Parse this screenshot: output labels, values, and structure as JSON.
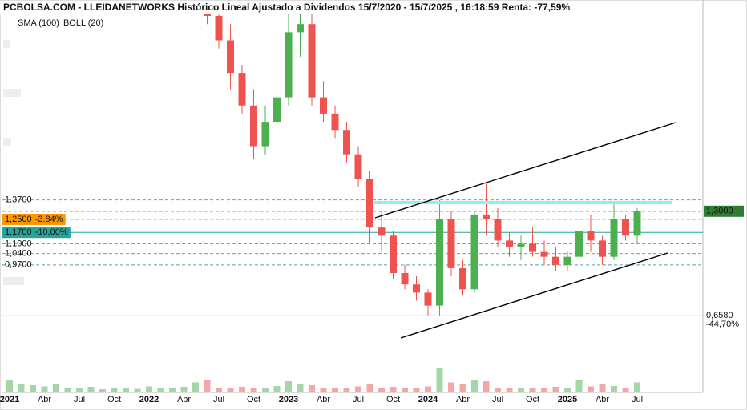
{
  "chart_data": {
    "type": "candlestick",
    "title": "PCBOLSA.COM - LLEIDANETWORKS Histórico Lineal Ajustado a Dividendos 15/7/2020 - 15/7/2025 , 16:18:59 Renta: -77,59%",
    "legend": [
      {
        "name": "SMA (100)",
        "color": "#8fd3ee"
      },
      {
        "name": "BOLL (20)",
        "color": "#c4c4c4"
      }
    ],
    "categories": [
      "2021",
      null,
      null,
      "Abr",
      null,
      null,
      "Jul",
      null,
      null,
      "Oct",
      null,
      null,
      "2022",
      null,
      null,
      "Abr",
      null,
      null,
      "Jul",
      null,
      null,
      "Oct",
      null,
      null,
      "2023",
      null,
      null,
      "Abr",
      null,
      null,
      "Jul",
      null,
      null,
      "Oct",
      null,
      null,
      "2024",
      null,
      null,
      "Abr",
      null,
      null,
      "Jul",
      null,
      null,
      "Oct",
      null,
      null,
      "2025",
      null,
      null,
      "Abr",
      null,
      null,
      "Jul"
    ],
    "open": [
      null,
      null,
      null,
      null,
      null,
      null,
      null,
      null,
      null,
      null,
      null,
      null,
      null,
      null,
      null,
      null,
      null,
      2.6,
      2.5,
      2.35,
      2.15,
      1.95,
      1.7,
      1.85,
      2.0,
      2.4,
      2.45,
      2.0,
      1.9,
      1.8,
      1.65,
      1.5,
      1.2,
      1.15,
      0.92,
      0.85,
      0.8,
      0.72,
      1.25,
      0.95,
      0.82,
      1.28,
      1.25,
      1.12,
      1.08,
      1.1,
      1.05,
      1.02,
      0.97,
      1.02,
      1.18,
      1.12,
      1.02,
      1.25,
      1.15
    ],
    "high": [
      null,
      null,
      null,
      null,
      null,
      null,
      null,
      null,
      null,
      null,
      null,
      null,
      null,
      null,
      null,
      null,
      null,
      2.7,
      2.55,
      2.45,
      2.2,
      2.05,
      1.95,
      2.05,
      2.55,
      2.55,
      2.55,
      2.1,
      1.95,
      1.85,
      1.7,
      1.55,
      1.3,
      1.18,
      0.97,
      0.9,
      0.82,
      1.37,
      1.3,
      1.0,
      1.3,
      1.47,
      1.32,
      1.17,
      1.15,
      1.2,
      1.12,
      1.08,
      1.05,
      1.37,
      1.28,
      1.15,
      1.36,
      1.28,
      1.32
    ],
    "low": [
      null,
      null,
      null,
      null,
      null,
      null,
      null,
      null,
      null,
      null,
      null,
      null,
      null,
      null,
      null,
      null,
      null,
      2.45,
      2.3,
      2.05,
      1.9,
      1.62,
      1.65,
      1.7,
      1.95,
      2.25,
      1.95,
      1.85,
      1.75,
      1.6,
      1.45,
      1.1,
      1.05,
      0.88,
      0.82,
      0.75,
      0.66,
      0.66,
      0.9,
      0.78,
      0.8,
      1.15,
      1.08,
      1.02,
      1.0,
      1.02,
      0.97,
      0.93,
      0.93,
      1.0,
      1.05,
      0.97,
      1.0,
      1.12,
      1.1
    ],
    "close": [
      null,
      null,
      null,
      null,
      null,
      null,
      null,
      null,
      null,
      null,
      null,
      null,
      null,
      null,
      null,
      null,
      null,
      2.5,
      2.35,
      2.15,
      1.95,
      1.7,
      1.85,
      2.0,
      2.4,
      2.45,
      2.0,
      1.9,
      1.8,
      1.65,
      1.5,
      1.2,
      1.15,
      0.92,
      0.85,
      0.8,
      0.72,
      1.25,
      0.95,
      0.82,
      1.28,
      1.25,
      1.12,
      1.08,
      1.1,
      1.05,
      1.02,
      0.97,
      1.02,
      1.18,
      1.12,
      1.02,
      1.25,
      1.15,
      1.3
    ],
    "volume": [
      30,
      22,
      18,
      15,
      20,
      12,
      10,
      14,
      8,
      12,
      10,
      9,
      15,
      12,
      10,
      14,
      25,
      30,
      12,
      10,
      14,
      12,
      10,
      16,
      28,
      20,
      18,
      12,
      10,
      10,
      15,
      22,
      12,
      14,
      10,
      12,
      15,
      60,
      25,
      20,
      30,
      28,
      12,
      10,
      10,
      12,
      10,
      14,
      12,
      30,
      15,
      20,
      16,
      12,
      25
    ],
    "up_color": "#4caf50",
    "down_color": "#ef5350",
    "ylim": [
      0.6,
      2.51
    ],
    "levels": [
      {
        "value": 1.37,
        "label": "1,3700",
        "color": "#e57373",
        "dash": true,
        "side": "left"
      },
      {
        "value": 1.3,
        "label": "1,3000",
        "color": "#222222",
        "dash": true,
        "side": "right",
        "bg": "#2e7d32"
      },
      {
        "value": 1.25,
        "label": "1,2500",
        "change": "-3.84%",
        "color": "#ff9800",
        "dash": true,
        "side": "left",
        "bg": "#ff9800"
      },
      {
        "value": 1.17,
        "label": "1,1700",
        "change": "-10,00%",
        "color": "#26a69a",
        "dash": false,
        "side": "left",
        "bg": "#26a69a"
      },
      {
        "value": 1.1,
        "label": "1,1000",
        "color": "#5f9ea0",
        "dash": true,
        "side": "left"
      },
      {
        "value": 1.04,
        "label": "1,0400",
        "color": "#7a9a9a",
        "dash": true,
        "side": "left"
      },
      {
        "value": 0.97,
        "label": "0,9700",
        "color": "#5f9ea0",
        "dash": true,
        "side": "left"
      },
      {
        "value": 0.658,
        "label": "0,6580",
        "change": "-44,70%",
        "color": "#cccccc",
        "dash": false,
        "side": "right"
      }
    ]
  }
}
